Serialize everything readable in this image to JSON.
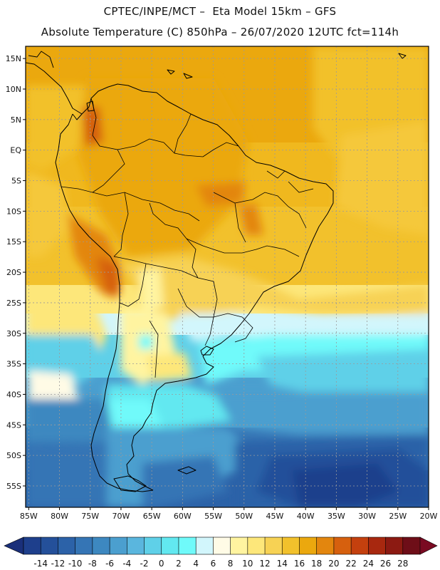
{
  "title_line1": "CPTEC/INPE/MCT –  Eta Model 15km – GFS",
  "title_line2": "Absolute Temperature (C) 850hPa – 26/07/2020 12UTC fct=114h",
  "lat_labels": [
    "15N",
    "10N",
    "5N",
    "EQ",
    "5S",
    "10S",
    "15S",
    "20S",
    "25S",
    "30S",
    "35S",
    "40S",
    "45S",
    "50S",
    "55S"
  ],
  "lat_values": [
    15,
    10,
    5,
    0,
    -5,
    -10,
    -15,
    -20,
    -25,
    -30,
    -35,
    -40,
    -45,
    -50,
    -55
  ],
  "lon_labels": [
    "85W",
    "80W",
    "75W",
    "70W",
    "65W",
    "60W",
    "55W",
    "50W",
    "45W",
    "40W",
    "35W",
    "30W",
    "25W",
    "20W"
  ],
  "lon_values": [
    -85,
    -80,
    -75,
    -70,
    -65,
    -60,
    -55,
    -50,
    -45,
    -40,
    -35,
    -30,
    -25,
    -20
  ],
  "map_extent": {
    "lon_min": -85.5,
    "lon_max": -20,
    "lat_min": -58.5,
    "lat_max": 17
  },
  "colorbar": {
    "labels": [
      "-14",
      "-12",
      "-10",
      "-8",
      "-6",
      "-4",
      "-2",
      "0",
      "2",
      "4",
      "6",
      "8",
      "10",
      "12",
      "14",
      "16",
      "18",
      "20",
      "22",
      "24",
      "26",
      "28"
    ],
    "colors": [
      "#1e3f8c",
      "#24509a",
      "#2c62a8",
      "#3575b5",
      "#3d88c0",
      "#4b9fcf",
      "#5ab6de",
      "#5fd0e8",
      "#62e8f0",
      "#6ffafa",
      "#d2f6fc",
      "#fffbe6",
      "#fff4a0",
      "#fde77a",
      "#f7d254",
      "#f2c12c",
      "#eba80e",
      "#e3860e",
      "#d6600e",
      "#c4400e",
      "#a8280f",
      "#8c1a12",
      "#6e0e18"
    ],
    "under_color": "#1a2f7a",
    "over_color": "#7a0a22"
  }
}
